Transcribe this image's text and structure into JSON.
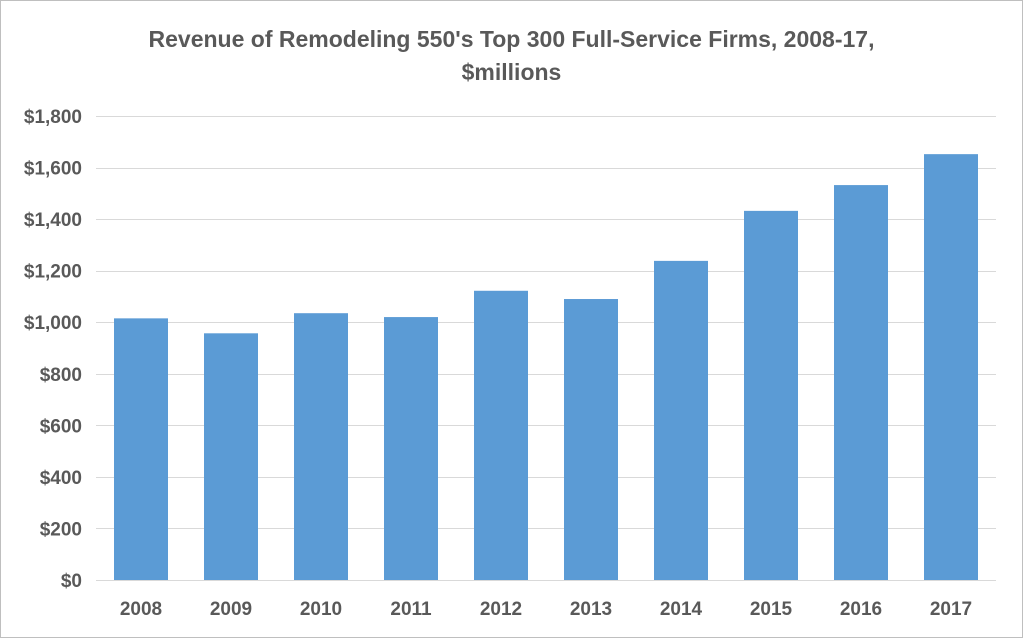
{
  "chart_data": {
    "type": "bar",
    "title_lines": [
      "Revenue of Remodeling 550's Top 300 Full-Service Firms, 2008-17,",
      "$millions"
    ],
    "categories": [
      "2008",
      "2009",
      "2010",
      "2011",
      "2012",
      "2013",
      "2014",
      "2015",
      "2016",
      "2017"
    ],
    "values": [
      1015,
      957,
      1035,
      1020,
      1122,
      1090,
      1238,
      1432,
      1532,
      1652
    ],
    "ylim": [
      0,
      1800
    ],
    "yticks": [
      0,
      200,
      400,
      600,
      800,
      1000,
      1200,
      1400,
      1600,
      1800
    ],
    "ytick_labels": [
      "$0",
      "$200",
      "$400",
      "$600",
      "$800",
      "$1,000",
      "$1,200",
      "$1,400",
      "$1,600",
      "$1,800"
    ],
    "xlabel": "",
    "ylabel": "",
    "grid": true,
    "legend": "none",
    "bar_color": "#5b9bd5"
  }
}
